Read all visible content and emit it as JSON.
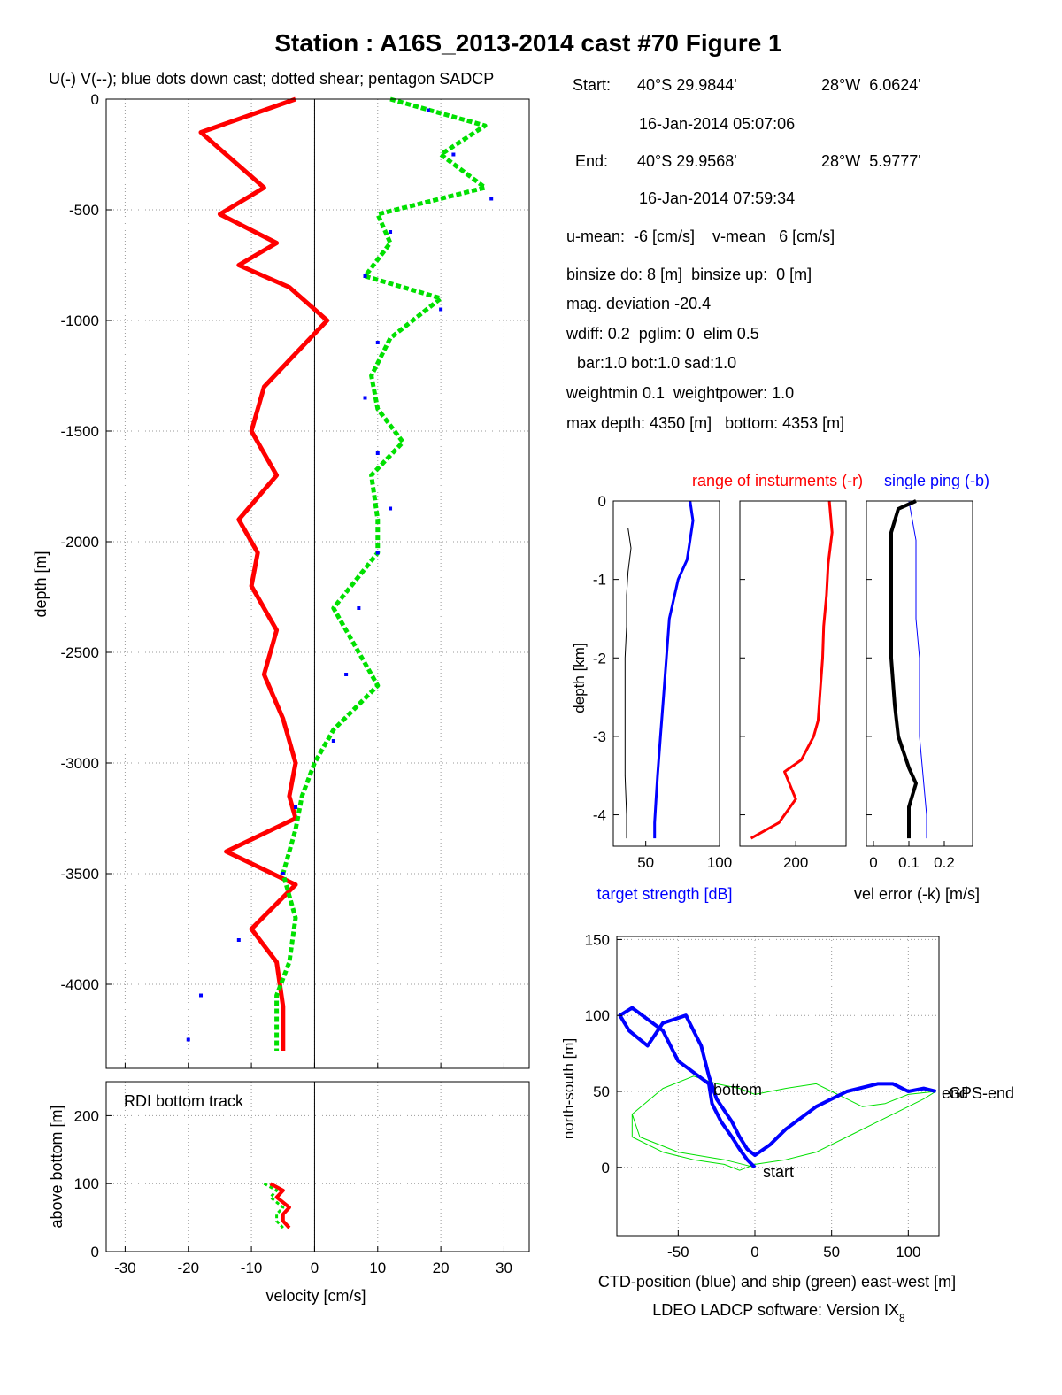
{
  "title": "Station : A16S_2013-2014 cast #70  Figure 1",
  "subtitle": "U(-) V(--); blue dots down cast; dotted shear; pentagon SADCP",
  "colors": {
    "u": "#ff0000",
    "v": "#00e000",
    "downcast": "#0000ff",
    "ctd": "#0000ff",
    "ship": "#00e000",
    "grid": "#999999",
    "link": "#e8e000"
  },
  "info": {
    "start_label": "Start:",
    "start_lat": "40°S 29.9844'",
    "start_lon": "28°W  6.0624'",
    "start_time": "16-Jan-2014 05:07:06",
    "end_label": "End:",
    "end_lat": "40°S 29.9568'",
    "end_lon": "28°W  5.9777'",
    "end_time": "16-Jan-2014 07:59:34",
    "line1": "u-mean:  -6 [cm/s]    v-mean   6 [cm/s]",
    "line2": "binsize do: 8 [m]  binsize up:  0 [m]",
    "line3": "mag. deviation -20.4",
    "line4": "wdiff: 0.2  pglim: 0  elim 0.5",
    "line5": "bar:1.0 bot:1.0 sad:1.0",
    "line6": "weightmin 0.1  weightpower: 1.0",
    "line7": "max depth: 4350 [m]   bottom: 4353 [m]"
  },
  "footer": {
    "software": "LDEO LADCP software: Version IX",
    "software_sub": "8"
  },
  "chart_data": [
    {
      "id": "velocity_profile",
      "type": "line",
      "xlabel": "velocity [cm/s]",
      "ylabel": "depth [m]",
      "xlim": [
        -33,
        34
      ],
      "ylim": [
        -4380,
        0
      ],
      "xticks": [
        -30,
        -20,
        -10,
        0,
        10,
        20,
        30
      ],
      "yticks": [
        0,
        -500,
        -1000,
        -1500,
        -2000,
        -2500,
        -3000,
        -3500,
        -4000
      ],
      "grid": true,
      "series": [
        {
          "name": "U",
          "style": "solid",
          "x": [
            -3,
            -18,
            -12,
            -8,
            -15,
            -6,
            -12,
            -4,
            2,
            -3,
            -8,
            -10,
            -6,
            -12,
            -9,
            -10,
            -6,
            -8,
            -5,
            -3,
            -4,
            -3,
            -14,
            -3,
            -10,
            -6,
            -5,
            -5
          ],
          "y": [
            0,
            -150,
            -300,
            -400,
            -520,
            -650,
            -750,
            -850,
            -1000,
            -1150,
            -1300,
            -1500,
            -1700,
            -1900,
            -2050,
            -2200,
            -2400,
            -2600,
            -2800,
            -3000,
            -3150,
            -3250,
            -3400,
            -3550,
            -3750,
            -3900,
            -4100,
            -4300
          ]
        },
        {
          "name": "V",
          "style": "dashed",
          "x": [
            12,
            27,
            20,
            27,
            10,
            12,
            8,
            20,
            12,
            9,
            10,
            14,
            9,
            10,
            10,
            3,
            6,
            10,
            3,
            0,
            -2,
            -3,
            -5,
            -3,
            -4,
            -6,
            -6,
            -6
          ],
          "y": [
            0,
            -120,
            -250,
            -400,
            -520,
            -650,
            -800,
            -900,
            -1080,
            -1250,
            -1400,
            -1550,
            -1700,
            -1900,
            -2050,
            -2300,
            -2450,
            -2650,
            -2850,
            -3000,
            -3150,
            -3300,
            -3500,
            -3700,
            -3900,
            -4050,
            -4200,
            -4300
          ]
        },
        {
          "name": "down cast",
          "style": "dots",
          "x": [
            18,
            22,
            28,
            12,
            8,
            20,
            10,
            8,
            10,
            12,
            10,
            7,
            5,
            3,
            -3,
            -5,
            -12,
            -18,
            -20
          ],
          "y": [
            -50,
            -250,
            -450,
            -600,
            -800,
            -950,
            -1100,
            -1350,
            -1600,
            -1850,
            -2050,
            -2300,
            -2600,
            -2900,
            -3200,
            -3500,
            -3800,
            -4050,
            -4250
          ]
        }
      ]
    },
    {
      "id": "bottom_track",
      "type": "line",
      "xlabel": "velocity [cm/s]",
      "ylabel": "above bottom [m]",
      "legend": "RDI bottom track",
      "xlim": [
        -33,
        34
      ],
      "ylim": [
        0,
        250
      ],
      "xticks": [
        -30,
        -20,
        -10,
        0,
        10,
        20,
        30
      ],
      "yticks": [
        0,
        100,
        200
      ],
      "grid": true,
      "series": [
        {
          "name": "U",
          "x": [
            -7,
            -5,
            -6,
            -4,
            -5,
            -5,
            -4
          ],
          "y": [
            100,
            90,
            80,
            65,
            55,
            45,
            35
          ]
        },
        {
          "name": "V",
          "x": [
            -8,
            -6,
            -7,
            -5,
            -6,
            -6,
            -5
          ],
          "y": [
            100,
            90,
            80,
            65,
            55,
            45,
            35
          ]
        }
      ]
    },
    {
      "id": "target_strength",
      "type": "line",
      "xlabel": "target strength [dB]",
      "ylabel": "depth [km]",
      "xlim": [
        28,
        100
      ],
      "ylim": [
        -4.4,
        0
      ],
      "xticks": [
        50,
        100
      ],
      "yticks": [
        0,
        -1,
        -2,
        -3,
        -4
      ],
      "series": [
        {
          "name": "blue",
          "x": [
            80,
            82,
            80,
            78,
            72,
            66,
            64,
            62,
            60,
            58,
            57,
            56,
            56
          ],
          "y": [
            0,
            -0.25,
            -0.5,
            -0.75,
            -1.0,
            -1.5,
            -2.0,
            -2.5,
            -3.0,
            -3.5,
            -3.8,
            -4.1,
            -4.3
          ]
        },
        {
          "name": "black",
          "x": [
            38,
            40,
            38,
            37,
            37,
            36,
            36,
            36,
            36,
            37,
            37
          ],
          "y": [
            -0.35,
            -0.6,
            -0.9,
            -1.2,
            -1.6,
            -2.0,
            -2.5,
            -3.0,
            -3.5,
            -4.0,
            -4.3
          ]
        }
      ]
    },
    {
      "id": "range_of_instruments",
      "type": "line",
      "legend": "range of insturments (-r)",
      "xlim": [
        100,
        290
      ],
      "ylim": [
        -4.4,
        0
      ],
      "xticks": [
        200
      ],
      "yticks": [
        0,
        -1,
        -2,
        -3,
        -4
      ],
      "series": [
        {
          "name": "range",
          "x": [
            260,
            265,
            258,
            255,
            250,
            248,
            244,
            240,
            232,
            210,
            180,
            200,
            170,
            120
          ],
          "y": [
            0,
            -0.4,
            -0.8,
            -1.2,
            -1.6,
            -2.0,
            -2.4,
            -2.8,
            -3.0,
            -3.3,
            -3.45,
            -3.8,
            -4.1,
            -4.3
          ]
        }
      ]
    },
    {
      "id": "vel_error",
      "type": "line",
      "legend": "single ping (-b)",
      "xlabel": "vel error (-k) [m/s]",
      "xlim": [
        -0.02,
        0.28
      ],
      "ylim": [
        -4.4,
        0
      ],
      "xticks": [
        0,
        0.1,
        0.2
      ],
      "yticks": [
        0,
        -1,
        -2,
        -3,
        -4
      ],
      "series": [
        {
          "name": "black",
          "x": [
            0.12,
            0.07,
            0.05,
            0.05,
            0.05,
            0.06,
            0.07,
            0.1,
            0.12,
            0.1,
            0.1
          ],
          "y": [
            0,
            -0.1,
            -0.4,
            -1.0,
            -2.0,
            -2.6,
            -3.0,
            -3.4,
            -3.6,
            -3.9,
            -4.3
          ]
        },
        {
          "name": "blue",
          "x": [
            0.1,
            0.12,
            0.12,
            0.12,
            0.13,
            0.13,
            0.13,
            0.14,
            0.15,
            0.15
          ],
          "y": [
            0,
            -0.5,
            -1.0,
            -1.5,
            -2.0,
            -2.5,
            -3.0,
            -3.5,
            -4.0,
            -4.3
          ]
        }
      ]
    },
    {
      "id": "position",
      "type": "line",
      "xlabel": "CTD-position (blue) and ship (green) east-west [m]",
      "ylabel": "north-south [m]",
      "xlim": [
        -90,
        120
      ],
      "ylim": [
        -45,
        152
      ],
      "xticks": [
        -50,
        0,
        50,
        100
      ],
      "yticks": [
        0,
        50,
        100,
        150
      ],
      "grid": true,
      "annotations": [
        "start",
        "bottom",
        "end",
        "GPS-end"
      ],
      "series": [
        {
          "name": "CTD",
          "x": [
            0,
            -5,
            -10,
            -15,
            -22,
            -28,
            -30,
            -50,
            -60,
            -80,
            -88,
            -82,
            -70,
            -60,
            -45,
            -35,
            -30,
            -25,
            -15,
            -10,
            -5,
            0,
            10,
            20,
            40,
            60,
            80,
            90,
            100,
            110,
            118
          ],
          "y": [
            0,
            5,
            12,
            20,
            30,
            42,
            55,
            70,
            90,
            105,
            100,
            90,
            80,
            95,
            100,
            80,
            60,
            45,
            30,
            20,
            12,
            8,
            15,
            25,
            40,
            50,
            55,
            55,
            50,
            52,
            50
          ]
        },
        {
          "name": "ship",
          "x": [
            0,
            -20,
            -50,
            -75,
            -80,
            -60,
            -40,
            -25,
            -10,
            0,
            20,
            40,
            50,
            60,
            70,
            85,
            100,
            118,
            110,
            100,
            80,
            60,
            40,
            20,
            0,
            -10,
            -20,
            -40,
            -60,
            -80,
            -80
          ],
          "y": [
            0,
            5,
            10,
            20,
            35,
            52,
            60,
            55,
            52,
            48,
            52,
            55,
            50,
            45,
            40,
            42,
            48,
            50,
            45,
            40,
            30,
            20,
            10,
            5,
            2,
            -2,
            2,
            5,
            10,
            20,
            35
          ]
        }
      ]
    }
  ]
}
